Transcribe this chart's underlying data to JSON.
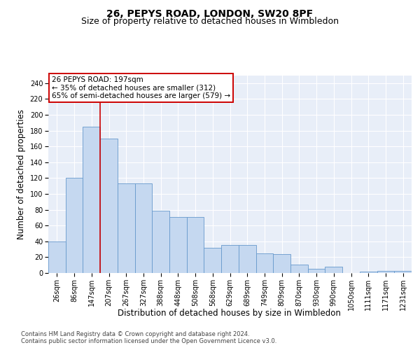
{
  "title_line1": "26, PEPYS ROAD, LONDON, SW20 8PF",
  "title_line2": "Size of property relative to detached houses in Wimbledon",
  "xlabel": "Distribution of detached houses by size in Wimbledon",
  "ylabel": "Number of detached properties",
  "categories": [
    "26sqm",
    "86sqm",
    "147sqm",
    "207sqm",
    "267sqm",
    "327sqm",
    "388sqm",
    "448sqm",
    "508sqm",
    "568sqm",
    "629sqm",
    "689sqm",
    "749sqm",
    "809sqm",
    "870sqm",
    "930sqm",
    "990sqm",
    "1050sqm",
    "1111sqm",
    "1171sqm",
    "1231sqm"
  ],
  "values": [
    40,
    120,
    185,
    170,
    113,
    113,
    79,
    71,
    71,
    32,
    35,
    35,
    25,
    24,
    11,
    5,
    8,
    0,
    2,
    3,
    3
  ],
  "bar_color": "#c5d8f0",
  "bar_edge_color": "#6699cc",
  "vline_x": 2.5,
  "vline_color": "#cc0000",
  "annotation_text": "26 PEPYS ROAD: 197sqm\n← 35% of detached houses are smaller (312)\n65% of semi-detached houses are larger (579) →",
  "annotation_box_color": "white",
  "annotation_box_edge_color": "#cc0000",
  "ylim": [
    0,
    250
  ],
  "yticks": [
    0,
    20,
    40,
    60,
    80,
    100,
    120,
    140,
    160,
    180,
    200,
    220,
    240
  ],
  "background_color": "#e8eef8",
  "grid_color": "#ffffff",
  "footer_line1": "Contains HM Land Registry data © Crown copyright and database right 2024.",
  "footer_line2": "Contains public sector information licensed under the Open Government Licence v3.0.",
  "title_fontsize": 10,
  "subtitle_fontsize": 9,
  "axis_label_fontsize": 8.5,
  "tick_fontsize": 7,
  "annotation_fontsize": 7.5,
  "footer_fontsize": 6
}
